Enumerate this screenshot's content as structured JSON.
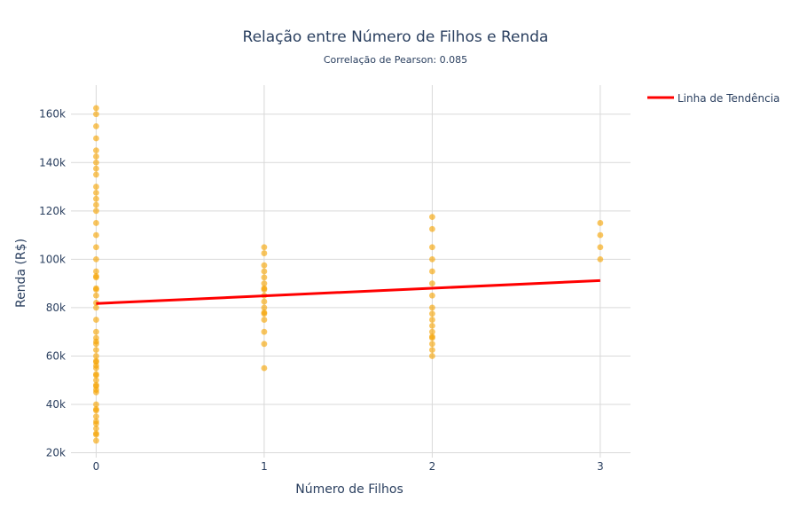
{
  "chart_data": {
    "type": "scatter",
    "title": "Relação entre Número de Filhos e Renda",
    "subtitle": "Correlação de Pearson: 0.085",
    "xlabel": "Número de Filhos",
    "ylabel": "Renda (R$)",
    "xlim": [
      -0.15,
      3.18
    ],
    "ylim": [
      18000,
      172000
    ],
    "x_ticks": [
      0,
      1,
      2,
      3
    ],
    "x_tick_labels": [
      "0",
      "1",
      "2",
      "3"
    ],
    "y_ticks": [
      20000,
      40000,
      60000,
      80000,
      100000,
      120000,
      140000,
      160000
    ],
    "y_tick_labels": [
      "20k",
      "40k",
      "60k",
      "80k",
      "100k",
      "120k",
      "140k",
      "160k"
    ],
    "grid": true,
    "legend_position": "top-right",
    "marker_color": "#f5a300",
    "trend_color": "#ff0000",
    "series": [
      {
        "points": [
          [
            0,
            25000
          ],
          [
            0,
            27500
          ],
          [
            0,
            28000
          ],
          [
            0,
            30000
          ],
          [
            0,
            32000
          ],
          [
            0,
            33000
          ],
          [
            0,
            35000
          ],
          [
            0,
            37500
          ],
          [
            0,
            38000
          ],
          [
            0,
            40000
          ],
          [
            0,
            45000
          ],
          [
            0,
            46000
          ],
          [
            0,
            47500
          ],
          [
            0,
            48000
          ],
          [
            0,
            50000
          ],
          [
            0,
            52000
          ],
          [
            0,
            52500
          ],
          [
            0,
            55000
          ],
          [
            0,
            56000
          ],
          [
            0,
            57500
          ],
          [
            0,
            58000
          ],
          [
            0,
            60000
          ],
          [
            0,
            62500
          ],
          [
            0,
            65000
          ],
          [
            0,
            66000
          ],
          [
            0,
            67500
          ],
          [
            0,
            70000
          ],
          [
            0,
            75000
          ],
          [
            0,
            80000
          ],
          [
            0,
            82000
          ],
          [
            0,
            85000
          ],
          [
            0,
            87500
          ],
          [
            0,
            88000
          ],
          [
            0,
            92500
          ],
          [
            0,
            93000
          ],
          [
            0,
            95000
          ],
          [
            0,
            100000
          ],
          [
            0,
            105000
          ],
          [
            0,
            110000
          ],
          [
            0,
            115000
          ],
          [
            0,
            120000
          ],
          [
            0,
            122500
          ],
          [
            0,
            125000
          ],
          [
            0,
            127500
          ],
          [
            0,
            130000
          ],
          [
            0,
            135000
          ],
          [
            0,
            137500
          ],
          [
            0,
            140000
          ],
          [
            0,
            142500
          ],
          [
            0,
            145000
          ],
          [
            0,
            150000
          ],
          [
            0,
            155000
          ],
          [
            0,
            160000
          ],
          [
            0,
            162500
          ],
          [
            1,
            55000
          ],
          [
            1,
            65000
          ],
          [
            1,
            70000
          ],
          [
            1,
            75000
          ],
          [
            1,
            77500
          ],
          [
            1,
            78000
          ],
          [
            1,
            80000
          ],
          [
            1,
            82500
          ],
          [
            1,
            85000
          ],
          [
            1,
            87500
          ],
          [
            1,
            88000
          ],
          [
            1,
            90000
          ],
          [
            1,
            92500
          ],
          [
            1,
            95000
          ],
          [
            1,
            97500
          ],
          [
            1,
            102500
          ],
          [
            1,
            105000
          ],
          [
            2,
            60000
          ],
          [
            2,
            62500
          ],
          [
            2,
            65000
          ],
          [
            2,
            67500
          ],
          [
            2,
            68000
          ],
          [
            2,
            70000
          ],
          [
            2,
            72500
          ],
          [
            2,
            75000
          ],
          [
            2,
            77500
          ],
          [
            2,
            80000
          ],
          [
            2,
            85000
          ],
          [
            2,
            90000
          ],
          [
            2,
            95000
          ],
          [
            2,
            100000
          ],
          [
            2,
            105000
          ],
          [
            2,
            112500
          ],
          [
            2,
            117500
          ],
          [
            3,
            100000
          ],
          [
            3,
            105000
          ],
          [
            3,
            110000
          ],
          [
            3,
            115000
          ]
        ]
      },
      {
        "name": "Linha de Tendência",
        "type": "line",
        "x": [
          0,
          3
        ],
        "y": [
          81700,
          91200
        ]
      }
    ]
  }
}
